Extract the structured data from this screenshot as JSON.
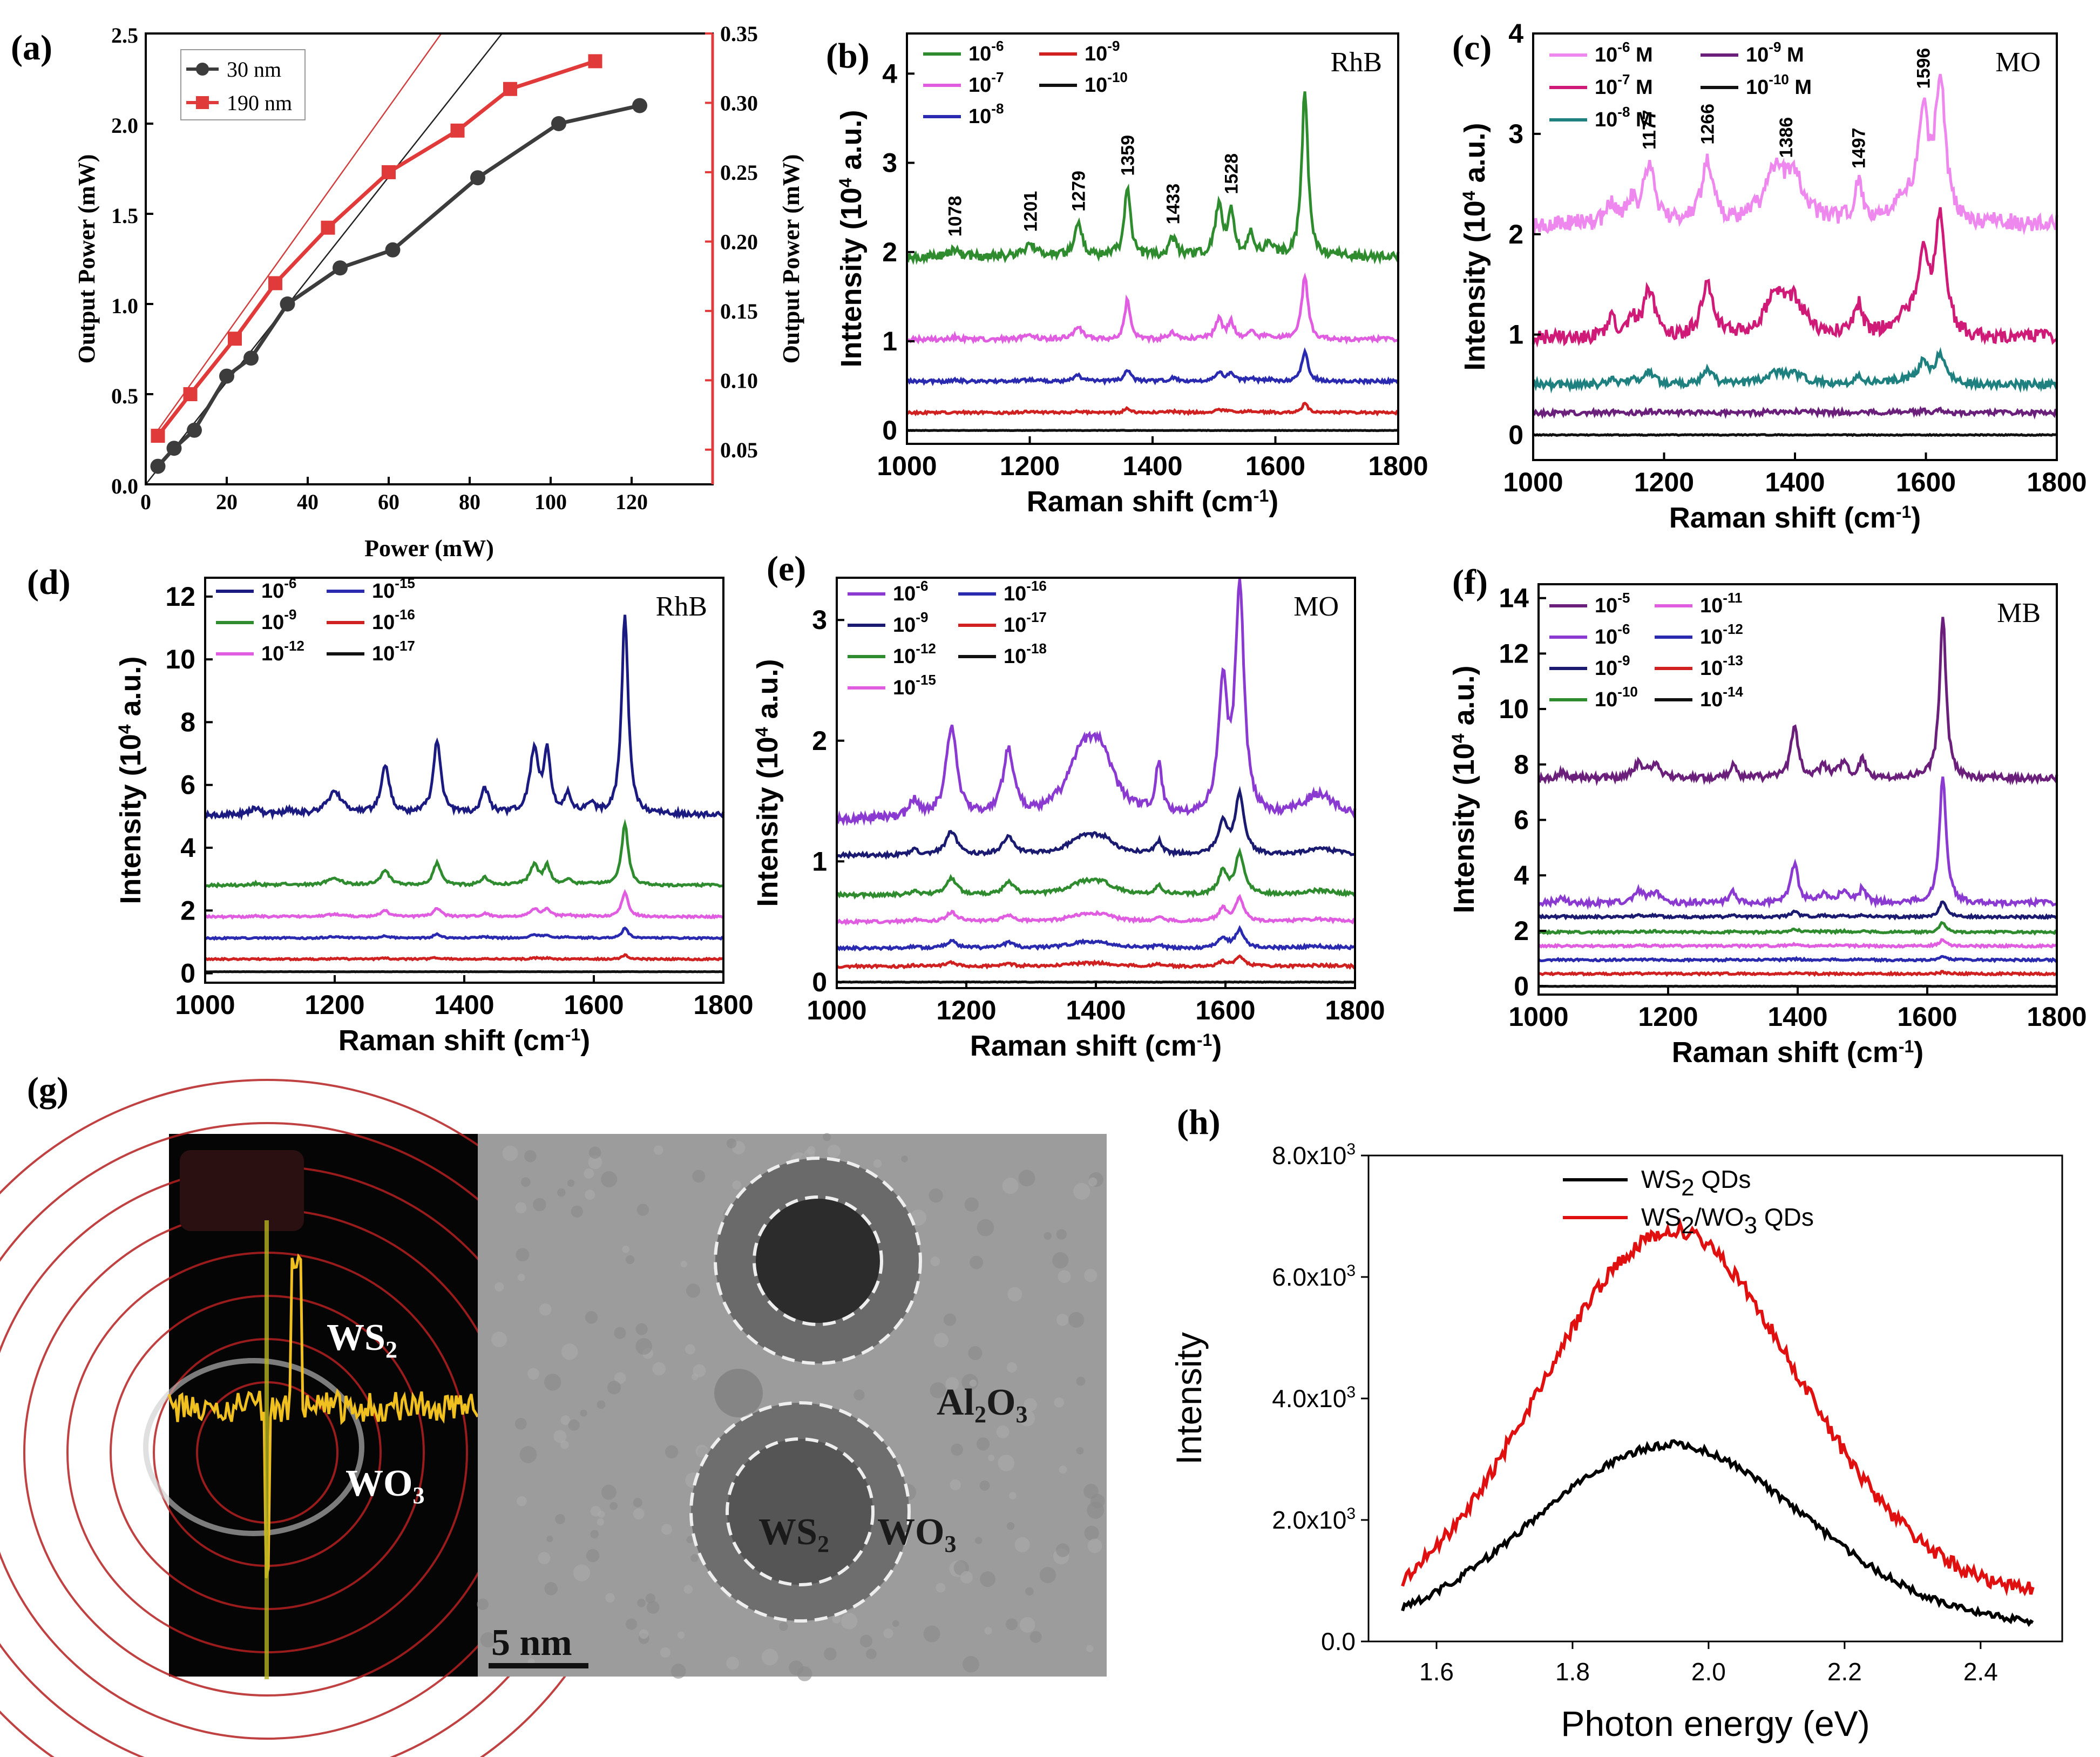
{
  "chart_data": [
    {
      "panel": "(a)",
      "type": "line",
      "xlabel": "Power (mW)",
      "ylabel": "Output Power (mW)",
      "ylabel_right": "Output Power (mW)",
      "xlim": [
        0,
        140
      ],
      "ylim": [
        0,
        2.5
      ],
      "ylim_right": [
        0.025,
        0.35
      ],
      "xticks": [
        0,
        20,
        40,
        60,
        80,
        100,
        120
      ],
      "yticks": [
        0.0,
        0.5,
        1.0,
        1.5,
        2.0,
        2.5
      ],
      "yticks_right": [
        0.05,
        0.1,
        0.15,
        0.2,
        0.25,
        0.3,
        0.35
      ],
      "legend": [
        "30 nm",
        "190 nm"
      ],
      "series": [
        {
          "name": "30 nm",
          "axis": "left",
          "color": "#3c3c3c",
          "x": [
            3,
            7,
            12,
            20,
            26,
            35,
            48,
            61,
            82,
            102,
            122
          ],
          "y": [
            0.1,
            0.2,
            0.3,
            0.6,
            0.7,
            1.0,
            1.2,
            1.3,
            1.7,
            2.0,
            2.1
          ]
        },
        {
          "name": "190 nm",
          "axis": "right",
          "color": "#e03a3a",
          "x": [
            3,
            11,
            22,
            32,
            45,
            60,
            77,
            90,
            111
          ],
          "y": [
            0.06,
            0.09,
            0.13,
            0.17,
            0.21,
            0.25,
            0.28,
            0.31,
            0.33
          ]
        }
      ]
    },
    {
      "panel": "(b)",
      "type": "line",
      "annotation": "RhB",
      "xlabel": "Raman shift (cm-1)",
      "ylabel": "Inttensity (10^4 a.u.)",
      "xlim": [
        1000,
        1800
      ],
      "ylim": [
        -0.15,
        4.45
      ],
      "xticks": [
        1000,
        1200,
        1400,
        1600,
        1800
      ],
      "yticks": [
        0,
        1,
        2,
        3,
        4
      ],
      "peak_labels": [
        1078,
        1201,
        1279,
        1359,
        1433,
        1528
      ],
      "legend": [
        "10-6",
        "10-7",
        "10-8",
        "10-9",
        "10-10"
      ],
      "peaks": [
        [
          1078,
          0.06,
          8
        ],
        [
          1201,
          0.1,
          12
        ],
        [
          1279,
          0.28,
          8
        ],
        [
          1359,
          0.6,
          6
        ],
        [
          1433,
          0.16,
          7
        ],
        [
          1508,
          0.45,
          7
        ],
        [
          1528,
          0.38,
          6
        ],
        [
          1560,
          0.2,
          6
        ],
        [
          1590,
          0.1,
          7
        ],
        [
          1648,
          1.5,
          6
        ]
      ],
      "series": [
        {
          "name": "10-6",
          "color": "#2e8b2e",
          "baseline": 1.95,
          "scale": 1.25
        },
        {
          "name": "10-7",
          "color": "#e05ce0",
          "baseline": 1.02,
          "scale": 0.48,
          "extra": [
            [
              1359,
              0.35,
              4
            ]
          ]
        },
        {
          "name": "10-8",
          "color": "#2a2ab0",
          "baseline": 0.55,
          "scale": 0.22
        },
        {
          "name": "10-9",
          "color": "#d02020",
          "baseline": 0.2,
          "scale": 0.07
        },
        {
          "name": "10-10",
          "color": "#111111",
          "baseline": 0.0,
          "scale": 0.0
        }
      ]
    },
    {
      "panel": "(c)",
      "type": "line",
      "annotation": "MO",
      "xlabel": "Raman shift (cm-1)",
      "ylabel": "Intensity (10^4 a.u.)",
      "xlim": [
        1000,
        1800
      ],
      "ylim": [
        -0.25,
        4.0
      ],
      "xticks": [
        1000,
        1200,
        1400,
        1600,
        1800
      ],
      "yticks": [
        0,
        1,
        2,
        3,
        4
      ],
      "peak_labels": [
        1177,
        1266,
        1386,
        1497,
        1596
      ],
      "legend": [
        "10-6 M",
        "10-7 M",
        "10-8 M",
        "10-9 M",
        "10-10 M"
      ],
      "peaks": [
        [
          1120,
          0.2,
          8
        ],
        [
          1150,
          0.18,
          8
        ],
        [
          1177,
          0.55,
          10
        ],
        [
          1266,
          0.6,
          10
        ],
        [
          1370,
          0.45,
          20
        ],
        [
          1400,
          0.35,
          18
        ],
        [
          1497,
          0.35,
          7
        ],
        [
          1565,
          0.2,
          20
        ],
        [
          1596,
          0.95,
          9
        ],
        [
          1622,
          1.35,
          9
        ]
      ],
      "series": [
        {
          "name": "10-6 M",
          "color": "#ee88ee",
          "baseline": 2.1,
          "scale": 1.05
        },
        {
          "name": "10-7 M",
          "color": "#d01a78",
          "baseline": 0.97,
          "scale": 0.85
        },
        {
          "name": "10-8 M",
          "color": "#1f8080",
          "baseline": 0.5,
          "scale": 0.22
        },
        {
          "name": "10-9 M",
          "color": "#6a1f7a",
          "baseline": 0.22,
          "scale": 0.02
        },
        {
          "name": "10-10 M",
          "color": "#111111",
          "baseline": 0.0,
          "scale": 0.0
        }
      ]
    },
    {
      "panel": "(d)",
      "type": "line",
      "annotation": "RhB",
      "xlabel": "Raman shift (cm-1)",
      "ylabel": "Intensity (10^4 a.u.)",
      "xlim": [
        1000,
        1800
      ],
      "ylim": [
        -0.3,
        12.6
      ],
      "xticks": [
        1000,
        1200,
        1400,
        1600,
        1800
      ],
      "yticks": [
        0,
        2,
        4,
        6,
        8,
        10,
        12
      ],
      "legend": [
        "10-6",
        "10-9",
        "10-12",
        "10-15",
        "10-16",
        "10-17"
      ],
      "peaks": [
        [
          1078,
          0.2,
          8
        ],
        [
          1128,
          0.15,
          8
        ],
        [
          1200,
          0.7,
          14
        ],
        [
          1278,
          1.5,
          8
        ],
        [
          1358,
          2.3,
          7
        ],
        [
          1432,
          0.8,
          7
        ],
        [
          1508,
          2.0,
          8
        ],
        [
          1528,
          1.9,
          6
        ],
        [
          1560,
          0.6,
          6
        ],
        [
          1595,
          0.3,
          7
        ],
        [
          1648,
          6.4,
          6
        ]
      ],
      "series": [
        {
          "name": "10-6",
          "color": "#1a1a80",
          "baseline": 5.05,
          "scale": 1.0
        },
        {
          "name": "10-9",
          "color": "#2e8b2e",
          "baseline": 2.8,
          "scale": 0.31
        },
        {
          "name": "10-12",
          "color": "#e05ce0",
          "baseline": 1.8,
          "scale": 0.12
        },
        {
          "name": "10-15",
          "color": "#2a2ab0",
          "baseline": 1.12,
          "scale": 0.05
        },
        {
          "name": "10-16",
          "color": "#d02020",
          "baseline": 0.45,
          "scale": 0.02
        },
        {
          "name": "10-17",
          "color": "#111111",
          "baseline": 0.05,
          "scale": 0.0
        }
      ]
    },
    {
      "panel": "(e)",
      "type": "line",
      "annotation": "MO",
      "xlabel": "Raman shift (cm-1)",
      "ylabel": "Intensity (10^4 a.u.)",
      "xlim": [
        1000,
        1800
      ],
      "ylim": [
        -0.05,
        3.35
      ],
      "xticks": [
        1000,
        1200,
        1400,
        1600,
        1800
      ],
      "yticks": [
        0,
        1,
        2,
        3
      ],
      "legend": [
        "10-6",
        "10-9",
        "10-12",
        "10-15",
        "10-16",
        "10-17",
        "10-18"
      ],
      "peaks": [
        [
          1120,
          0.15,
          8
        ],
        [
          1177,
          0.75,
          10
        ],
        [
          1265,
          0.55,
          10
        ],
        [
          1380,
          0.5,
          28
        ],
        [
          1410,
          0.4,
          22
        ],
        [
          1497,
          0.4,
          6
        ],
        [
          1596,
          1.05,
          8
        ],
        [
          1622,
          1.9,
          8
        ],
        [
          1745,
          0.2,
          30
        ]
      ],
      "series": [
        {
          "name": "10-6",
          "color": "#8a3ad0",
          "baseline": 1.35,
          "scale": 1.0
        },
        {
          "name": "10-9",
          "color": "#1a1a70",
          "baseline": 1.05,
          "scale": 0.26
        },
        {
          "name": "10-12",
          "color": "#2e8b2e",
          "baseline": 0.72,
          "scale": 0.18
        },
        {
          "name": "10-15",
          "color": "#e05ce0",
          "baseline": 0.5,
          "scale": 0.1
        },
        {
          "name": "10-16",
          "color": "#2a2ab0",
          "baseline": 0.28,
          "scale": 0.08
        },
        {
          "name": "10-17",
          "color": "#d02020",
          "baseline": 0.13,
          "scale": 0.04
        },
        {
          "name": "10-18",
          "color": "#111111",
          "baseline": 0.0,
          "scale": 0.0
        }
      ]
    },
    {
      "panel": "(f)",
      "type": "line",
      "annotation": "MB",
      "xlabel": "Raman shift (cm-1)",
      "ylabel": "Intensity (10^4 a.u.)",
      "xlim": [
        1000,
        1800
      ],
      "ylim": [
        -0.3,
        14.5
      ],
      "xticks": [
        1000,
        1200,
        1400,
        1600,
        1800
      ],
      "yticks": [
        0,
        2,
        4,
        6,
        8,
        10,
        12,
        14
      ],
      "legend": [
        "10-5",
        "10-6",
        "10-9",
        "10-10",
        "10-11",
        "10-12",
        "10-13",
        "10-14"
      ],
      "peaks": [
        [
          1035,
          0.2,
          8
        ],
        [
          1155,
          0.5,
          10
        ],
        [
          1180,
          0.45,
          9
        ],
        [
          1300,
          0.5,
          6
        ],
        [
          1395,
          1.8,
          7
        ],
        [
          1440,
          0.4,
          8
        ],
        [
          1470,
          0.5,
          8
        ],
        [
          1500,
          0.65,
          6
        ],
        [
          1624,
          5.9,
          6
        ]
      ],
      "series": [
        {
          "name": "10-5",
          "color": "#6a1f7a",
          "baseline": 7.5,
          "scale": 1.0
        },
        {
          "name": "10-6",
          "color": "#8a3ad0",
          "baseline": 3.0,
          "scale": 0.78
        },
        {
          "name": "10-9",
          "color": "#1a1a70",
          "baseline": 2.5,
          "scale": 0.1
        },
        {
          "name": "10-10",
          "color": "#2e8b2e",
          "baseline": 1.95,
          "scale": 0.06
        },
        {
          "name": "10-11",
          "color": "#e05ce0",
          "baseline": 1.45,
          "scale": 0.04
        },
        {
          "name": "10-12",
          "color": "#2a2ab0",
          "baseline": 0.95,
          "scale": 0.02
        },
        {
          "name": "10-13",
          "color": "#d02020",
          "baseline": 0.45,
          "scale": 0.01
        },
        {
          "name": "10-14",
          "color": "#111111",
          "baseline": 0.0,
          "scale": 0.0
        }
      ]
    },
    {
      "panel": "(h)",
      "type": "line",
      "xlabel": "Photon energy (eV)",
      "ylabel": "Intensity",
      "xlim": [
        1.5,
        2.52
      ],
      "ylim": [
        0,
        8000
      ],
      "xticks": [
        1.6,
        1.8,
        2.0,
        2.2,
        2.4
      ],
      "yticks": [
        0,
        2000,
        4000,
        6000,
        8000
      ],
      "ytick_labels": [
        "0.0",
        "2.0x10",
        "4.0x10",
        "6.0x10",
        "8.0x10"
      ],
      "ytick_exponent": "3",
      "legend": [
        "WS2 QDs",
        "WS2/WO3 QDs"
      ],
      "series": [
        {
          "name": "WS2 QDs",
          "color": "#000000",
          "peak_x": 1.94,
          "peak_y": 3000,
          "width": 0.2,
          "baseline": 250,
          "range": [
            1.55,
            2.48
          ]
        },
        {
          "name": "WS2/WO3 QDs",
          "color": "#e01010",
          "peak_x": 1.94,
          "peak_y": 6050,
          "width": 0.19,
          "baseline": 750,
          "range": [
            1.55,
            2.48
          ]
        }
      ]
    }
  ],
  "panel_labels": {
    "a": "(a)",
    "b": "(b)",
    "c": "(c)",
    "d": "(d)",
    "e": "(e)",
    "f": "(f)",
    "g": "(g)",
    "h": "(h)"
  },
  "tem_image": {
    "label_ws2": "WS",
    "label_ws2_sub": "2",
    "label_wo3": "WO",
    "label_wo3_sub": "3",
    "label_al2o3": "Al",
    "label_al2o3_sub1": "2",
    "label_al2o3_o": "O",
    "label_al2o3_sub2": "3",
    "label_core_ws": "WS",
    "label_core_ws_sub": "2",
    "label_core_wo": "WO",
    "label_core_wo_sub": "3",
    "scale_bar": "5 nm"
  }
}
